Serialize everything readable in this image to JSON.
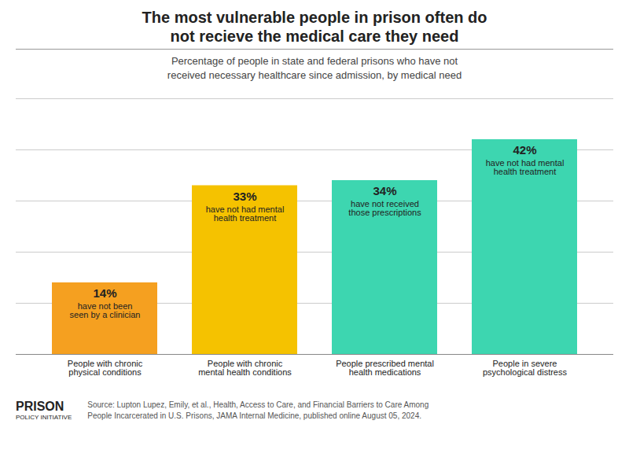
{
  "chart_data": {
    "type": "bar",
    "title": "The most vulnerable people in prison often do\nnot recieve the medical care they need",
    "subtitle": "Percentage of people in state and federal prisons who have not\nreceived necessary healthcare since admission, by medical need",
    "categories": [
      "People with chronic\nphysical conditions",
      "People with chronic\nmental health conditions",
      "People prescribed mental\nhealth medications",
      "People in severe\npsychological distress"
    ],
    "values": [
      14,
      33,
      34,
      42
    ],
    "value_labels": [
      "14%",
      "33%",
      "34%",
      "42%"
    ],
    "colors": [
      "#F5A020",
      "#F5C200",
      "#3DD6B0",
      "#3DD6B0"
    ],
    "data_labels": true,
    "annotations": [
      [
        "have not been",
        "seen by a clinician"
      ],
      [
        "have not had mental",
        "health treatment"
      ],
      [
        "have not received",
        "those prescriptions"
      ],
      [
        "have not had mental",
        "health treatment"
      ]
    ],
    "notes": [
      "PRISON",
      "POLICY INITIATIVE"
    ],
    "source": "Source: Lupton Lupez, Emily, et al., Health, Access to Care, and Financial Barriers to Care Among\nPeople Incarcerated in U.S. Prisons, JAMA Internal Medicine, published online August 05, 2024.",
    "ylim": [
      0,
      50
    ],
    "yticks": [
      0,
      10,
      20,
      30,
      40,
      50
    ],
    "grid": true,
    "tick_labels": "x"
  }
}
